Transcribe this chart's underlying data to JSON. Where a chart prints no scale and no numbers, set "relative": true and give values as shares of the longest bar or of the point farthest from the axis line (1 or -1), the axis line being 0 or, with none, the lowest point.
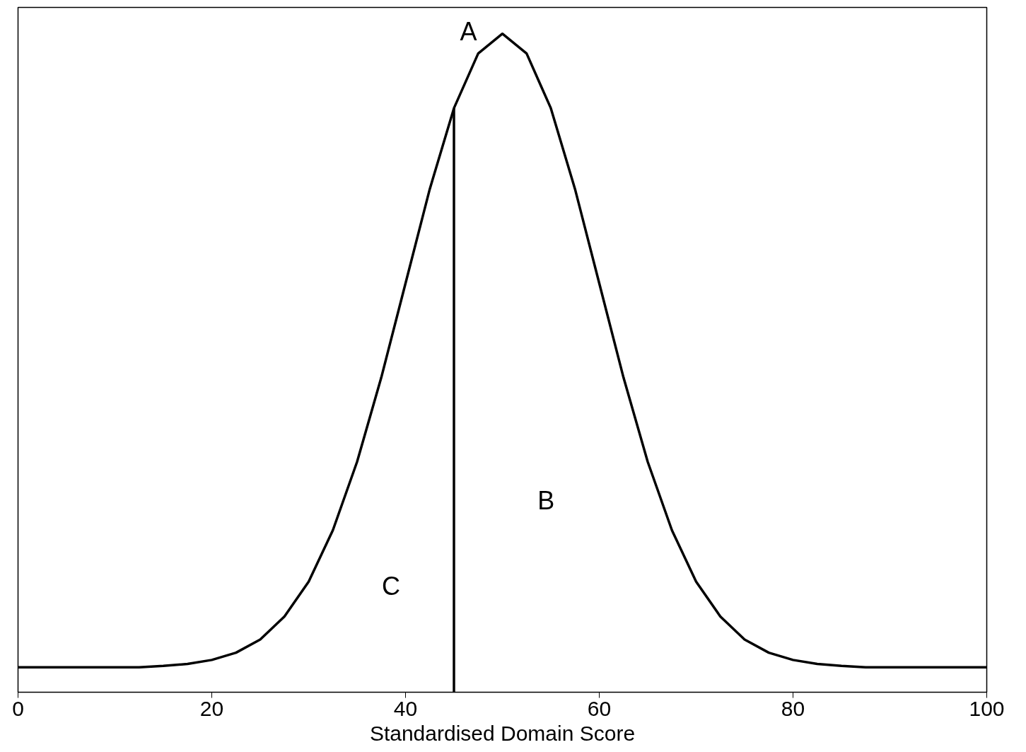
{
  "chart_data": {
    "type": "line",
    "relative": true,
    "xlabel": "Standardised Domain Score",
    "xlim": [
      0,
      100
    ],
    "xticks": [
      0,
      20,
      40,
      60,
      80,
      100
    ],
    "grid": false,
    "marker": "none",
    "line_style": "solid",
    "series": [
      {
        "color": "#000000",
        "x": [
          0,
          2.5,
          5,
          7.5,
          10,
          12.5,
          15,
          17.5,
          20,
          22.5,
          25,
          27.5,
          30,
          32.5,
          35,
          37.5,
          40,
          42.5,
          45,
          47.5,
          50,
          52.5,
          55,
          57.5,
          60,
          62.5,
          65,
          67.5,
          70,
          72.5,
          75,
          77.5,
          80,
          82.5,
          85,
          87.5,
          90,
          92.5,
          95,
          97.5,
          100
        ],
        "values": [
          0.038,
          0.038,
          0.038,
          0.038,
          0.038,
          0.038,
          0.04,
          0.043,
          0.049,
          0.06,
          0.08,
          0.115,
          0.168,
          0.246,
          0.35,
          0.478,
          0.621,
          0.764,
          0.887,
          0.97,
          1.0,
          0.97,
          0.887,
          0.764,
          0.621,
          0.478,
          0.35,
          0.246,
          0.168,
          0.115,
          0.08,
          0.06,
          0.049,
          0.043,
          0.04,
          0.038,
          0.038,
          0.038,
          0.038,
          0.038,
          0.038
        ]
      },
      {
        "type": "line",
        "color": "#000000",
        "x": [
          45,
          45
        ],
        "values": [
          0,
          0.887
        ]
      }
    ],
    "annotations": [
      "A",
      "B",
      "C"
    ]
  }
}
